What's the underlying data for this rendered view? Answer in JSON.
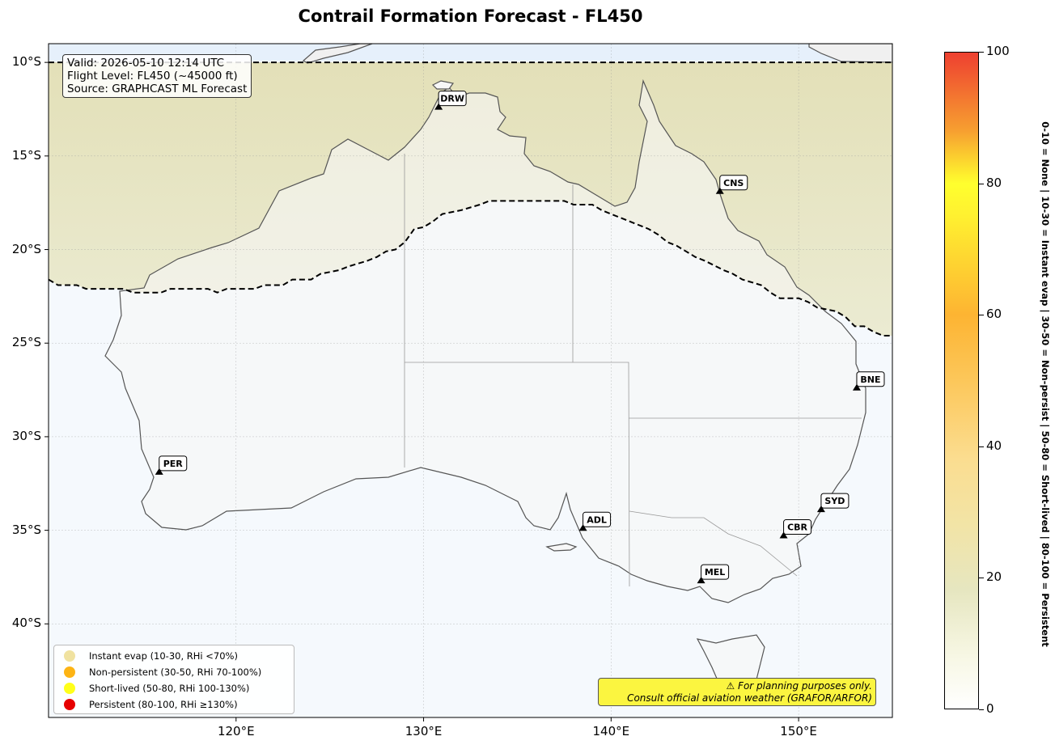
{
  "title": "Contrail Formation Forecast - FL450",
  "info": {
    "valid": "Valid: 2026-05-10 12:14 UTC",
    "flight_level": "Flight Level: FL450 (~45000 ft)",
    "source": "Source: GRAPHCAST ML Forecast"
  },
  "axes": {
    "lat_labels": [
      "10°S",
      "15°S",
      "20°S",
      "25°S",
      "30°S",
      "35°S",
      "40°S"
    ],
    "lon_labels": [
      "120°E",
      "130°E",
      "140°E",
      "150°E"
    ]
  },
  "airports": [
    {
      "code": "DRW",
      "lon": 130.8,
      "lat": -12.4
    },
    {
      "code": "CNS",
      "lon": 145.8,
      "lat": -16.9
    },
    {
      "code": "BNE",
      "lon": 153.1,
      "lat": -27.4
    },
    {
      "code": "PER",
      "lon": 115.9,
      "lat": -31.9
    },
    {
      "code": "ADL",
      "lon": 138.5,
      "lat": -34.9
    },
    {
      "code": "SYD",
      "lon": 151.2,
      "lat": -33.9
    },
    {
      "code": "CBR",
      "lon": 149.2,
      "lat": -35.3
    },
    {
      "code": "MEL",
      "lon": 144.8,
      "lat": -37.7
    }
  ],
  "legend": [
    {
      "label": "Instant evap (10-30, RHi <70%)",
      "color": "#f0e2a0"
    },
    {
      "label": "Non-persistent (30-50, RHi 70-100%)",
      "color": "#fdb414"
    },
    {
      "label": "Short-lived (50-80, RHi 100-130%)",
      "color": "#ffff1a"
    },
    {
      "label": "Persistent (80-100, RHi ≥130%)",
      "color": "#e60000"
    }
  ],
  "warning": {
    "line1": "⚠ For planning purposes only.",
    "line2": "Consult official aviation weather (GRAFOR/ARFOR)"
  },
  "colorbar": {
    "ticks": [
      "0",
      "20",
      "40",
      "60",
      "80",
      "100"
    ],
    "side_label": "0-10 = None  |  10-30 = Instant evap  |  30-50 = Non-persist  |  50-80 = Short-lived  |  80-100 = Persistent"
  },
  "map_data": {
    "extent": {
      "lon_min": 110,
      "lon_max": 155,
      "lat_min": -45,
      "lat_max": -9
    },
    "contrail_boundary_north_lat": -10,
    "contrail_boundary": [
      [
        110,
        -21.6
      ],
      [
        110.5,
        -21.9
      ],
      [
        111.5,
        -21.9
      ],
      [
        112,
        -22.1
      ],
      [
        114,
        -22.1
      ],
      [
        114.5,
        -22.3
      ],
      [
        116,
        -22.3
      ],
      [
        116.5,
        -22.1
      ],
      [
        118.5,
        -22.1
      ],
      [
        119,
        -22.3
      ],
      [
        119.5,
        -22.1
      ],
      [
        121,
        -22.1
      ],
      [
        121.5,
        -21.9
      ],
      [
        122.5,
        -21.9
      ],
      [
        123,
        -21.6
      ],
      [
        124,
        -21.6
      ],
      [
        124.5,
        -21.3
      ],
      [
        125.5,
        -21.1
      ],
      [
        126,
        -20.9
      ],
      [
        127,
        -20.6
      ],
      [
        127.5,
        -20.4
      ],
      [
        128,
        -20.1
      ],
      [
        128.5,
        -20.0
      ],
      [
        129,
        -19.6
      ],
      [
        129.5,
        -18.9
      ],
      [
        130,
        -18.8
      ],
      [
        130.5,
        -18.5
      ],
      [
        131,
        -18.1
      ],
      [
        132,
        -17.9
      ],
      [
        133,
        -17.6
      ],
      [
        133.5,
        -17.4
      ],
      [
        137.5,
        -17.4
      ],
      [
        138,
        -17.6
      ],
      [
        139,
        -17.6
      ],
      [
        139.5,
        -17.9
      ],
      [
        140,
        -18.1
      ],
      [
        141,
        -18.5
      ],
      [
        142,
        -18.9
      ],
      [
        142.5,
        -19.2
      ],
      [
        143,
        -19.6
      ],
      [
        143.5,
        -19.8
      ],
      [
        144,
        -20.1
      ],
      [
        144.5,
        -20.4
      ],
      [
        145,
        -20.6
      ],
      [
        146,
        -21.1
      ],
      [
        146.5,
        -21.3
      ],
      [
        147,
        -21.6
      ],
      [
        148,
        -21.9
      ],
      [
        148.5,
        -22.3
      ],
      [
        149,
        -22.6
      ],
      [
        150,
        -22.6
      ],
      [
        150.5,
        -22.8
      ],
      [
        151,
        -23.1
      ],
      [
        152,
        -23.3
      ],
      [
        152.5,
        -23.6
      ],
      [
        153,
        -24.1
      ],
      [
        153.5,
        -24.1
      ],
      [
        154,
        -24.4
      ],
      [
        154.5,
        -24.6
      ],
      [
        155,
        -24.6
      ]
    ]
  }
}
